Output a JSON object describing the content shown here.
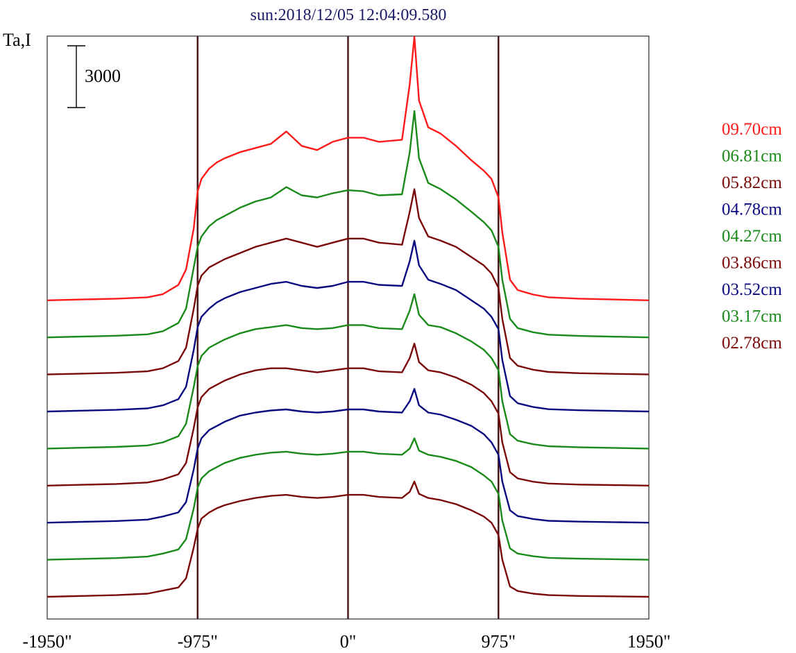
{
  "chart_data": {
    "type": "line",
    "title": "sun:2018/12/05 12:04:09.580",
    "ylabel": "Ta,I",
    "scale_bar_label": "3000",
    "xlim": [
      -1950,
      1950
    ],
    "x_tick_labels": [
      {
        "value": -1950,
        "label": "-1950\""
      },
      {
        "value": -975,
        "label": "-975\""
      },
      {
        "value": 0,
        "label": "0\""
      },
      {
        "value": 975,
        "label": "975\""
      },
      {
        "value": 1950,
        "label": "1950\""
      }
    ],
    "vertical_markers": [
      -975,
      0,
      975
    ],
    "grid": false,
    "legend_position": "right",
    "series_profile_x": [
      -1950,
      -1500,
      -1300,
      -1200,
      -1100,
      -1050,
      -1000,
      -975,
      -950,
      -900,
      -850,
      -800,
      -700,
      -600,
      -500,
      -400,
      -300,
      -200,
      -100,
      0,
      100,
      200,
      350,
      400,
      430,
      460,
      520,
      600,
      700,
      800,
      880,
      930,
      975,
      1000,
      1050,
      1100,
      1200,
      1300,
      1500,
      1950
    ],
    "series": [
      {
        "name": "09.70cm",
        "color": "#ff1a1a",
        "baseline": 0,
        "y": [
          0,
          80,
          150,
          300,
          750,
          1500,
          3500,
          5300,
          5900,
          6400,
          6700,
          6900,
          7200,
          7400,
          7600,
          8200,
          7500,
          7300,
          7700,
          7900,
          7900,
          7700,
          7800,
          10500,
          12800,
          9700,
          8400,
          8100,
          7500,
          6800,
          6300,
          5900,
          5000,
          3300,
          1000,
          500,
          280,
          150,
          80,
          0
        ]
      },
      {
        "name": "06.81cm",
        "color": "#1a8a1a",
        "baseline": 0,
        "y": [
          0,
          80,
          150,
          300,
          700,
          1400,
          3400,
          4400,
          4900,
          5400,
          5700,
          5900,
          6300,
          6600,
          6800,
          7300,
          6900,
          6800,
          7000,
          7150,
          7100,
          6900,
          6950,
          9000,
          11000,
          8700,
          7500,
          7200,
          6700,
          6100,
          5600,
          5200,
          4400,
          2800,
          900,
          450,
          250,
          130,
          70,
          0
        ]
      },
      {
        "name": "05.82cm",
        "color": "#7a0a0a",
        "baseline": 0,
        "y": [
          0,
          80,
          150,
          300,
          650,
          1300,
          3200,
          4300,
          4800,
          5200,
          5400,
          5600,
          5900,
          6200,
          6400,
          6600,
          6400,
          6200,
          6400,
          6600,
          6600,
          6400,
          6300,
          7900,
          9000,
          7600,
          6700,
          6500,
          6200,
          5700,
          5300,
          4900,
          4200,
          2700,
          800,
          420,
          230,
          120,
          60,
          0
        ]
      },
      {
        "name": "04.78cm",
        "color": "#0a0a80",
        "baseline": 0,
        "y": [
          0,
          80,
          150,
          300,
          600,
          1200,
          3000,
          4100,
          4600,
          5000,
          5300,
          5500,
          5800,
          6000,
          6200,
          6300,
          6100,
          6000,
          6100,
          6300,
          6300,
          6150,
          6100,
          7300,
          8300,
          7100,
          6400,
          6200,
          5900,
          5400,
          5000,
          4600,
          4000,
          2500,
          750,
          400,
          220,
          110,
          60,
          0
        ]
      },
      {
        "name": "04.27cm",
        "color": "#1a8a1a",
        "baseline": 0,
        "y": [
          0,
          80,
          150,
          300,
          600,
          1200,
          3000,
          4000,
          4500,
          4900,
          5100,
          5300,
          5600,
          5800,
          5900,
          6000,
          5850,
          5800,
          5850,
          6000,
          6000,
          5850,
          5800,
          6700,
          7500,
          6500,
          6000,
          5900,
          5600,
          5200,
          4800,
          4400,
          3800,
          2300,
          700,
          380,
          210,
          110,
          60,
          0
        ]
      },
      {
        "name": "03.86cm",
        "color": "#7a0a0a",
        "baseline": 0,
        "y": [
          0,
          80,
          150,
          300,
          550,
          1100,
          2800,
          3800,
          4300,
          4700,
          4900,
          5100,
          5400,
          5600,
          5700,
          5700,
          5600,
          5500,
          5600,
          5700,
          5700,
          5550,
          5500,
          6200,
          6900,
          6000,
          5600,
          5500,
          5250,
          4900,
          4500,
          4100,
          3500,
          2100,
          650,
          350,
          190,
          100,
          50,
          0
        ]
      },
      {
        "name": "03.52cm",
        "color": "#0a0a80",
        "baseline": 0,
        "y": [
          0,
          80,
          150,
          300,
          500,
          1000,
          2600,
          3600,
          4100,
          4500,
          4700,
          4900,
          5200,
          5350,
          5450,
          5500,
          5400,
          5350,
          5400,
          5500,
          5500,
          5400,
          5350,
          5900,
          6500,
          5700,
          5350,
          5250,
          5000,
          4700,
          4300,
          3900,
          3300,
          2000,
          600,
          320,
          180,
          90,
          50,
          0
        ]
      },
      {
        "name": "03.17cm",
        "color": "#1a8a1a",
        "baseline": 0,
        "y": [
          0,
          80,
          150,
          300,
          500,
          1000,
          2500,
          3500,
          3950,
          4300,
          4500,
          4700,
          4950,
          5100,
          5200,
          5250,
          5150,
          5100,
          5150,
          5250,
          5250,
          5150,
          5100,
          5400,
          5900,
          5300,
          5100,
          5000,
          4800,
          4500,
          4100,
          3800,
          3200,
          1900,
          550,
          300,
          170,
          90,
          50,
          0
        ]
      },
      {
        "name": "02.78cm",
        "color": "#7a0a0a",
        "baseline": 0,
        "y": [
          0,
          80,
          150,
          300,
          450,
          900,
          2400,
          3300,
          3800,
          4100,
          4300,
          4450,
          4650,
          4800,
          4900,
          4950,
          4850,
          4800,
          4850,
          4950,
          4950,
          4850,
          4800,
          5100,
          5600,
          5000,
          4800,
          4700,
          4500,
          4200,
          3900,
          3600,
          3000,
          1800,
          500,
          280,
          150,
          80,
          40,
          0
        ]
      }
    ],
    "series_offset_step": 1800
  }
}
